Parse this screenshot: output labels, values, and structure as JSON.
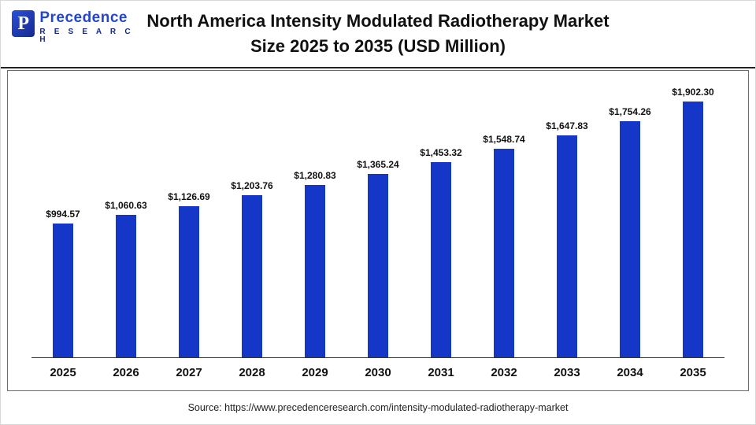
{
  "logo": {
    "mark": "P",
    "name": "Precedence",
    "sub": "R E S E A R C H"
  },
  "title_lines": {
    "line1": "North America Intensity Modulated Radiotherapy Market",
    "line2": "Size 2025 to 2035 (USD Million)"
  },
  "chart_data": {
    "type": "bar",
    "title": "North America Intensity Modulated Radiotherapy Market Size 2025 to 2035 (USD Million)",
    "categories": [
      "2025",
      "2026",
      "2027",
      "2028",
      "2029",
      "2030",
      "2031",
      "2032",
      "2033",
      "2034",
      "2035"
    ],
    "values": [
      994.57,
      1060.63,
      1126.69,
      1203.76,
      1280.83,
      1365.24,
      1453.32,
      1548.74,
      1647.83,
      1754.26,
      1902.3
    ],
    "value_labels": [
      "$994.57",
      "$1,060.63",
      "$1,126.69",
      "$1,203.76",
      "$1,280.83",
      "$1,365.24",
      "$1,453.32",
      "$1,548.74",
      "$1,647.83",
      "$1,754.26",
      "$1,902.30"
    ],
    "xlabel": "",
    "ylabel": "",
    "ylim": [
      0,
      2000
    ],
    "grid": false,
    "legend": false,
    "bar_color": "#1537c8"
  },
  "footer": {
    "source": "Source: https://www.precedenceresearch.com/intensity-modulated-radiotherapy-market"
  }
}
